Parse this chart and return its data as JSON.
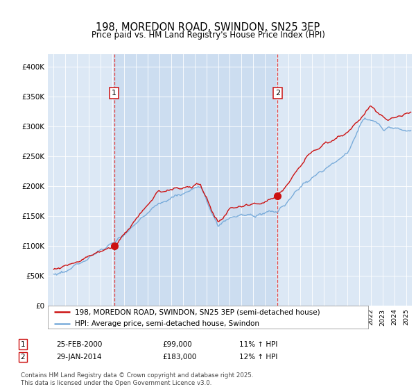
{
  "title": "198, MOREDON ROAD, SWINDON, SN25 3EP",
  "subtitle": "Price paid vs. HM Land Registry's House Price Index (HPI)",
  "legend_line1": "198, MOREDON ROAD, SWINDON, SN25 3EP (semi-detached house)",
  "legend_line2": "HPI: Average price, semi-detached house, Swindon",
  "footnote": "Contains HM Land Registry data © Crown copyright and database right 2025.\nThis data is licensed under the Open Government Licence v3.0.",
  "sale1_label": "1",
  "sale1_date": "25-FEB-2000",
  "sale1_price": "£99,000",
  "sale1_hpi": "11% ↑ HPI",
  "sale2_label": "2",
  "sale2_date": "29-JAN-2014",
  "sale2_price": "£183,000",
  "sale2_hpi": "12% ↑ HPI",
  "sale1_x": 2000.14,
  "sale1_y": 99000,
  "sale2_x": 2014.07,
  "sale2_y": 183000,
  "plot_bg_color": "#dce8f5",
  "shade_bg_color": "#ccddf0",
  "hpi_line_color": "#7aacda",
  "price_line_color": "#cc1111",
  "vline_color": "#dd2222",
  "marker_color": "#cc1111",
  "ylim_min": 0,
  "ylim_max": 420000,
  "xlim_min": 1994.5,
  "xlim_max": 2025.5,
  "yticks": [
    0,
    50000,
    100000,
    150000,
    200000,
    250000,
    300000,
    350000,
    400000
  ]
}
